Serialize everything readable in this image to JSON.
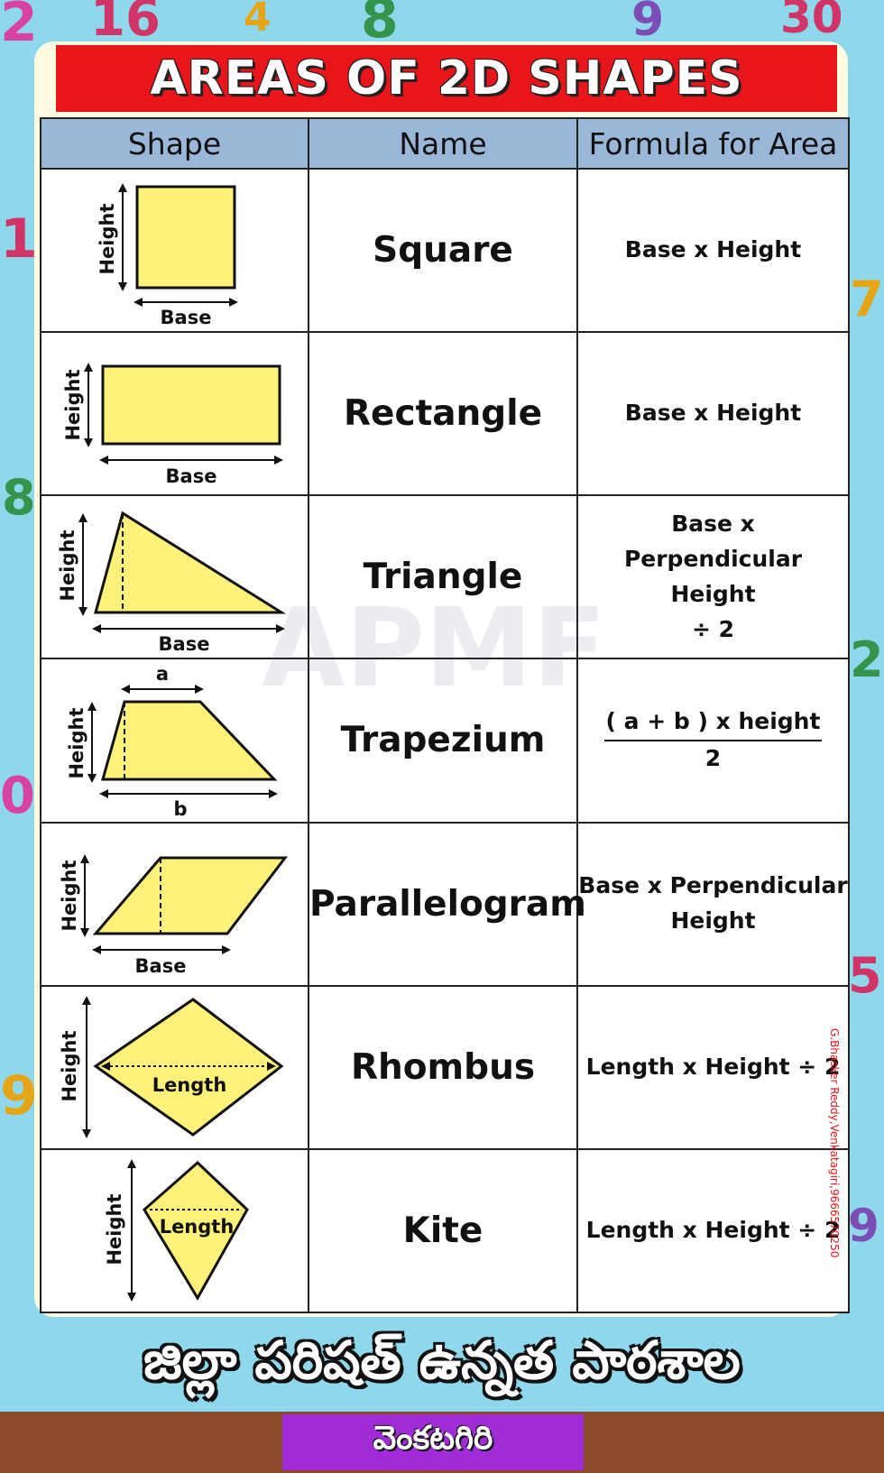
{
  "title": "AREAS OF 2D SHAPES",
  "headers": {
    "shape": "Shape",
    "name": "Name",
    "formula": "Formula for Area"
  },
  "labels": {
    "height": "Height",
    "base": "Base",
    "length": "Length",
    "a": "a",
    "b": "b"
  },
  "rows": [
    {
      "name": "Square",
      "formula": [
        "Base x Height"
      ]
    },
    {
      "name": "Rectangle",
      "formula": [
        "Base x Height"
      ]
    },
    {
      "name": "Triangle",
      "formula": [
        "Base x",
        "Perpendicular Height",
        "÷ 2"
      ]
    },
    {
      "name": "Trapezium",
      "formula": [
        "( a + b ) x height",
        "2"
      ]
    },
    {
      "name": "Parallelogram",
      "formula": [
        "Base x Perpendicular",
        "Height"
      ]
    },
    {
      "name": "Rhombus",
      "formula": [
        "Length x Height ÷ 2"
      ]
    },
    {
      "name": "Kite",
      "formula": [
        "Length x Height ÷ 2"
      ]
    }
  ],
  "watermark": "APMF",
  "credit": "G.Bhasker Reddy,Venkatagiri,9666570250",
  "school_name": "జిల్లా పరిషత్ ఉన్నత పాఠశాల",
  "place": "వెంకటగిరి",
  "colors": {
    "title_red": "#e8161b",
    "header_blue": "#9ab7d8",
    "shape_yellow": "#fff27a",
    "place_purple": "#a02cd8",
    "background": "#8fd8ec"
  }
}
